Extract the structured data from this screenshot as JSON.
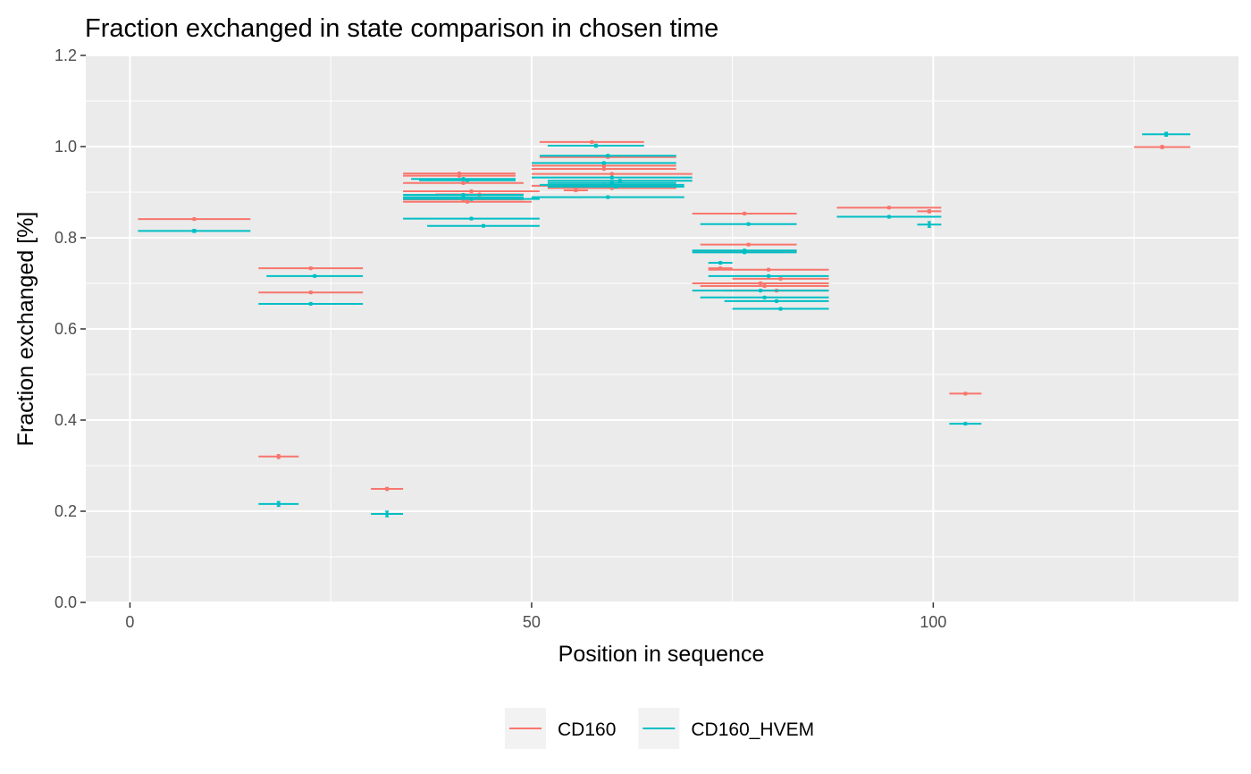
{
  "chart_data": {
    "type": "scatter",
    "title": "Fraction exchanged in state comparison in chosen time",
    "xlabel": "Position in sequence",
    "ylabel": "Fraction exchanged [%]",
    "xlim": [
      -5.5,
      138
    ],
    "ylim": [
      0,
      1.2
    ],
    "xticks": [
      0,
      50,
      100
    ],
    "yticks": [
      0.0,
      0.2,
      0.4,
      0.6,
      0.8,
      1.0,
      1.2
    ],
    "x_tick_labels": [
      "0",
      "50",
      "100"
    ],
    "y_tick_labels": [
      "0.0",
      "0.2",
      "0.4",
      "0.6",
      "0.8",
      "1.0",
      "1.2"
    ],
    "grid": true,
    "legend_position": "bottom",
    "series": [
      {
        "name": "CD160",
        "color": "#f8766d",
        "segments": [
          {
            "start": 1,
            "end": 15,
            "y": 0.841,
            "err": 0.002
          },
          {
            "start": 16,
            "end": 29,
            "y": 0.733,
            "err": 0.002
          },
          {
            "start": 16,
            "end": 29,
            "y": 0.68,
            "err": 0.002
          },
          {
            "start": 16,
            "end": 21,
            "y": 0.32,
            "err": 0.004
          },
          {
            "start": 30,
            "end": 34,
            "y": 0.249,
            "err": 0.003
          },
          {
            "start": 34,
            "end": 48,
            "y": 0.941,
            "err": 0.002
          },
          {
            "start": 34,
            "end": 48,
            "y": 0.936,
            "err": 0.002
          },
          {
            "start": 34,
            "end": 49,
            "y": 0.92,
            "err": 0.002
          },
          {
            "start": 34,
            "end": 51,
            "y": 0.902,
            "err": 0.002
          },
          {
            "start": 34,
            "end": 49,
            "y": 0.884,
            "err": 0.002
          },
          {
            "start": 34,
            "end": 50,
            "y": 0.879,
            "err": 0.002
          },
          {
            "start": 38,
            "end": 49,
            "y": 0.895,
            "err": 0.002
          },
          {
            "start": 51,
            "end": 64,
            "y": 1.01,
            "err": 0.002
          },
          {
            "start": 51,
            "end": 68,
            "y": 0.977,
            "err": 0.002
          },
          {
            "start": 50,
            "end": 68,
            "y": 0.958,
            "err": 0.002
          },
          {
            "start": 50,
            "end": 68,
            "y": 0.951,
            "err": 0.002
          },
          {
            "start": 50,
            "end": 70,
            "y": 0.94,
            "err": 0.002
          },
          {
            "start": 50,
            "end": 68,
            "y": 0.914,
            "err": 0.002
          },
          {
            "start": 52,
            "end": 68,
            "y": 0.909,
            "err": 0.002
          },
          {
            "start": 54,
            "end": 57,
            "y": 0.904,
            "err": 0.002
          },
          {
            "start": 70,
            "end": 83,
            "y": 0.853,
            "err": 0.002
          },
          {
            "start": 71,
            "end": 83,
            "y": 0.785,
            "err": 0.002
          },
          {
            "start": 70,
            "end": 83,
            "y": 0.77,
            "err": 0.002
          },
          {
            "start": 72,
            "end": 75,
            "y": 0.733,
            "err": 0.002
          },
          {
            "start": 72,
            "end": 87,
            "y": 0.73,
            "err": 0.002
          },
          {
            "start": 75,
            "end": 87,
            "y": 0.71,
            "err": 0.002
          },
          {
            "start": 70,
            "end": 87,
            "y": 0.7,
            "err": 0.002
          },
          {
            "start": 71,
            "end": 87,
            "y": 0.694,
            "err": 0.002
          },
          {
            "start": 74,
            "end": 87,
            "y": 0.684,
            "err": 0.002
          },
          {
            "start": 88,
            "end": 101,
            "y": 0.866,
            "err": 0.002
          },
          {
            "start": 98,
            "end": 101,
            "y": 0.858,
            "err": 0.003
          },
          {
            "start": 102,
            "end": 106,
            "y": 0.458,
            "err": 0.002
          },
          {
            "start": 125,
            "end": 132,
            "y": 0.999,
            "err": 0.003
          }
        ]
      },
      {
        "name": "CD160_HVEM",
        "color": "#00bfc4",
        "segments": [
          {
            "start": 1,
            "end": 15,
            "y": 0.815,
            "err": 0.003
          },
          {
            "start": 17,
            "end": 29,
            "y": 0.716,
            "err": 0.002
          },
          {
            "start": 16,
            "end": 29,
            "y": 0.655,
            "err": 0.002
          },
          {
            "start": 16,
            "end": 21,
            "y": 0.216,
            "err": 0.005
          },
          {
            "start": 30,
            "end": 34,
            "y": 0.194,
            "err": 0.006
          },
          {
            "start": 35,
            "end": 48,
            "y": 0.929,
            "err": 0.002
          },
          {
            "start": 36,
            "end": 48,
            "y": 0.926,
            "err": 0.002
          },
          {
            "start": 34,
            "end": 49,
            "y": 0.894,
            "err": 0.002
          },
          {
            "start": 34,
            "end": 49,
            "y": 0.889,
            "err": 0.002
          },
          {
            "start": 34,
            "end": 51,
            "y": 0.885,
            "err": 0.002
          },
          {
            "start": 34,
            "end": 51,
            "y": 0.842,
            "err": 0.002
          },
          {
            "start": 37,
            "end": 51,
            "y": 0.826,
            "err": 0.002
          },
          {
            "start": 52,
            "end": 64,
            "y": 1.002,
            "err": 0.003
          },
          {
            "start": 51,
            "end": 68,
            "y": 0.98,
            "err": 0.002
          },
          {
            "start": 50,
            "end": 68,
            "y": 0.964,
            "err": 0.002
          },
          {
            "start": 50,
            "end": 70,
            "y": 0.932,
            "err": 0.002
          },
          {
            "start": 52,
            "end": 70,
            "y": 0.925,
            "err": 0.002
          },
          {
            "start": 52,
            "end": 68,
            "y": 0.92,
            "err": 0.002
          },
          {
            "start": 51,
            "end": 69,
            "y": 0.916,
            "err": 0.002
          },
          {
            "start": 52,
            "end": 69,
            "y": 0.912,
            "err": 0.002
          },
          {
            "start": 50,
            "end": 69,
            "y": 0.889,
            "err": 0.002
          },
          {
            "start": 71,
            "end": 83,
            "y": 0.83,
            "err": 0.002
          },
          {
            "start": 70,
            "end": 83,
            "y": 0.772,
            "err": 0.002
          },
          {
            "start": 70,
            "end": 83,
            "y": 0.768,
            "err": 0.002
          },
          {
            "start": 72,
            "end": 75,
            "y": 0.745,
            "err": 0.002
          },
          {
            "start": 72,
            "end": 87,
            "y": 0.716,
            "err": 0.002
          },
          {
            "start": 70,
            "end": 87,
            "y": 0.684,
            "err": 0.002
          },
          {
            "start": 71,
            "end": 87,
            "y": 0.669,
            "err": 0.002
          },
          {
            "start": 74,
            "end": 87,
            "y": 0.661,
            "err": 0.002
          },
          {
            "start": 75,
            "end": 87,
            "y": 0.644,
            "err": 0.002
          },
          {
            "start": 88,
            "end": 101,
            "y": 0.846,
            "err": 0.002
          },
          {
            "start": 98,
            "end": 101,
            "y": 0.829,
            "err": 0.006
          },
          {
            "start": 102,
            "end": 106,
            "y": 0.392,
            "err": 0.002
          },
          {
            "start": 126,
            "end": 132,
            "y": 1.027,
            "err": 0.004
          }
        ]
      }
    ]
  }
}
